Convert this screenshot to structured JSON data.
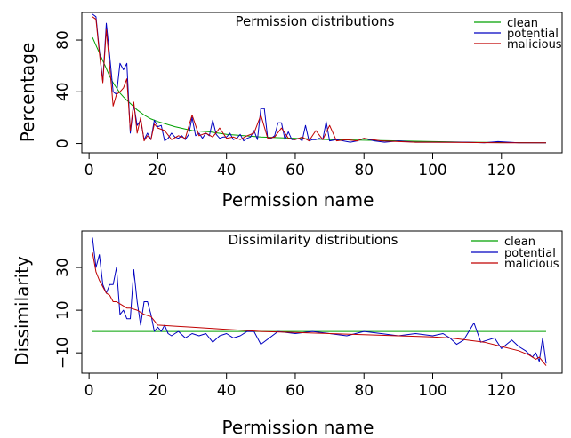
{
  "chart_data": [
    {
      "type": "line",
      "title": "Permission distributions",
      "xlabel": "Permission name",
      "ylabel": "Percentage",
      "xlim": [
        1,
        133
      ],
      "ylim": [
        0,
        100
      ],
      "xticks": [
        0,
        20,
        40,
        60,
        80,
        100,
        120
      ],
      "yticks": [
        0,
        40,
        80
      ],
      "grid": false,
      "legend": "top-right",
      "series": [
        {
          "name": "clean",
          "color": "#00a000",
          "x": [
            1,
            2,
            3,
            4,
            5,
            6,
            7,
            8,
            9,
            10,
            12,
            14,
            16,
            18,
            20,
            25,
            30,
            35,
            40,
            45,
            50,
            55,
            60,
            70,
            80,
            90,
            100,
            110,
            120,
            133
          ],
          "y": [
            82,
            76,
            70,
            64,
            58,
            52,
            47,
            43,
            39,
            36,
            31,
            26,
            22,
            19,
            17,
            13,
            10,
            9,
            7,
            6,
            5,
            4.5,
            4,
            3,
            2.5,
            2,
            1.5,
            1,
            0.8,
            0.5
          ]
        },
        {
          "name": "potential",
          "color": "#0000c0",
          "x": [
            1,
            2,
            3,
            4,
            5,
            6,
            7,
            8,
            9,
            10,
            11,
            12,
            13,
            14,
            15,
            16,
            17,
            18,
            19,
            20,
            21,
            22,
            23,
            24,
            25,
            26,
            27,
            28,
            29,
            30,
            31,
            32,
            33,
            34,
            35,
            36,
            37,
            38,
            39,
            40,
            41,
            42,
            43,
            44,
            45,
            46,
            47,
            48,
            49,
            50,
            51,
            52,
            53,
            54,
            55,
            56,
            57,
            58,
            59,
            60,
            61,
            62,
            63,
            64,
            65,
            66,
            67,
            68,
            69,
            70,
            72,
            74,
            76,
            78,
            80,
            83,
            86,
            90,
            95,
            100,
            105,
            110,
            115,
            119,
            125,
            133
          ],
          "y": [
            100,
            98,
            72,
            48,
            93,
            68,
            40,
            38,
            62,
            57,
            62,
            8,
            30,
            14,
            18,
            3,
            8,
            3,
            18,
            13,
            14,
            2,
            4,
            8,
            5,
            4,
            6,
            3,
            7,
            20,
            6,
            8,
            4,
            8,
            6,
            18,
            7,
            4,
            5,
            5,
            8,
            3,
            4,
            7,
            2,
            4,
            5,
            10,
            3,
            27,
            27,
            4,
            4,
            6,
            16,
            16,
            3,
            9,
            3,
            3,
            4,
            2,
            14,
            2,
            3,
            3,
            4,
            3,
            17,
            2,
            3,
            2,
            1,
            2,
            4,
            2,
            1,
            2,
            1,
            1,
            1,
            1,
            0.5,
            1.5,
            0.5,
            0.5
          ]
        },
        {
          "name": "malicious",
          "color": "#c00000",
          "x": [
            1,
            2,
            3,
            4,
            5,
            6,
            7,
            8,
            9,
            10,
            11,
            12,
            13,
            14,
            15,
            16,
            17,
            18,
            19,
            20,
            22,
            24,
            26,
            28,
            30,
            32,
            34,
            36,
            38,
            40,
            42,
            44,
            46,
            48,
            50,
            52,
            54,
            56,
            58,
            60,
            62,
            64,
            66,
            68,
            70,
            72,
            75,
            78,
            80,
            85,
            90,
            95,
            100,
            110,
            120,
            133
          ],
          "y": [
            98,
            96,
            70,
            47,
            88,
            60,
            29,
            38,
            40,
            43,
            50,
            10,
            32,
            8,
            20,
            2,
            6,
            3,
            15,
            12,
            10,
            3,
            6,
            4,
            22,
            6,
            8,
            5,
            12,
            4,
            5,
            3,
            6,
            8,
            22,
            4,
            5,
            12,
            4,
            3,
            5,
            2,
            10,
            3,
            14,
            2,
            3,
            2,
            4,
            2,
            1.5,
            1,
            1,
            0.8,
            0.6,
            0.5
          ]
        }
      ]
    },
    {
      "type": "line",
      "title": "Dissimilarity distributions",
      "xlabel": "Permission name",
      "ylabel": "Dissimilarity",
      "xlim": [
        1,
        133
      ],
      "ylim": [
        -15,
        45
      ],
      "xticks": [
        0,
        20,
        40,
        60,
        80,
        100,
        120
      ],
      "yticks": [
        -10,
        10,
        30
      ],
      "grid": false,
      "legend": "top-right",
      "series": [
        {
          "name": "clean",
          "color": "#00a000",
          "x": [
            1,
            133
          ],
          "y": [
            0,
            0
          ]
        },
        {
          "name": "potential",
          "color": "#0000c0",
          "x": [
            1,
            2,
            3,
            4,
            5,
            6,
            7,
            8,
            9,
            10,
            11,
            12,
            13,
            14,
            15,
            16,
            17,
            18,
            19,
            20,
            21,
            22,
            23,
            24,
            25,
            26,
            28,
            30,
            32,
            34,
            36,
            38,
            40,
            42,
            44,
            46,
            48,
            50,
            55,
            60,
            65,
            70,
            75,
            80,
            85,
            90,
            95,
            100,
            103,
            105,
            107,
            109,
            112,
            114,
            116,
            118,
            120,
            123,
            125,
            127,
            129,
            130,
            131,
            132,
            133
          ],
          "y": [
            44,
            30,
            36,
            22,
            18,
            22,
            22,
            30,
            8,
            10,
            6,
            6,
            29,
            14,
            3,
            14,
            14,
            8,
            0,
            2,
            0,
            3,
            -1,
            -2,
            -1,
            0,
            -3,
            -1,
            -2,
            -1,
            -5,
            -2,
            -1,
            -3,
            -2,
            0,
            0,
            -6,
            0,
            -1,
            0,
            -1,
            -2,
            0,
            -1,
            -2,
            -1,
            -2,
            -1,
            -3,
            -6,
            -4,
            4,
            -5,
            -4,
            -3,
            -8,
            -4,
            -7,
            -9,
            -12,
            -10,
            -14,
            -3,
            -15
          ]
        },
        {
          "name": "malicious",
          "color": "#c00000",
          "x": [
            1,
            2,
            3,
            4,
            5,
            6,
            7,
            8,
            9,
            10,
            11,
            12,
            14,
            16,
            18,
            20,
            25,
            30,
            35,
            40,
            45,
            50,
            60,
            70,
            80,
            90,
            100,
            105,
            110,
            115,
            120,
            125,
            128,
            130,
            131,
            132,
            133
          ],
          "y": [
            37,
            28,
            24,
            21,
            18,
            17,
            14,
            14,
            13,
            12,
            11,
            11,
            10,
            8,
            7,
            3,
            2.5,
            2,
            1.5,
            1,
            0.5,
            0,
            -0.5,
            -1,
            -1.5,
            -2,
            -2.5,
            -3,
            -4,
            -5,
            -7,
            -9,
            -11,
            -13,
            -12,
            -14,
            -16
          ]
        }
      ]
    }
  ]
}
